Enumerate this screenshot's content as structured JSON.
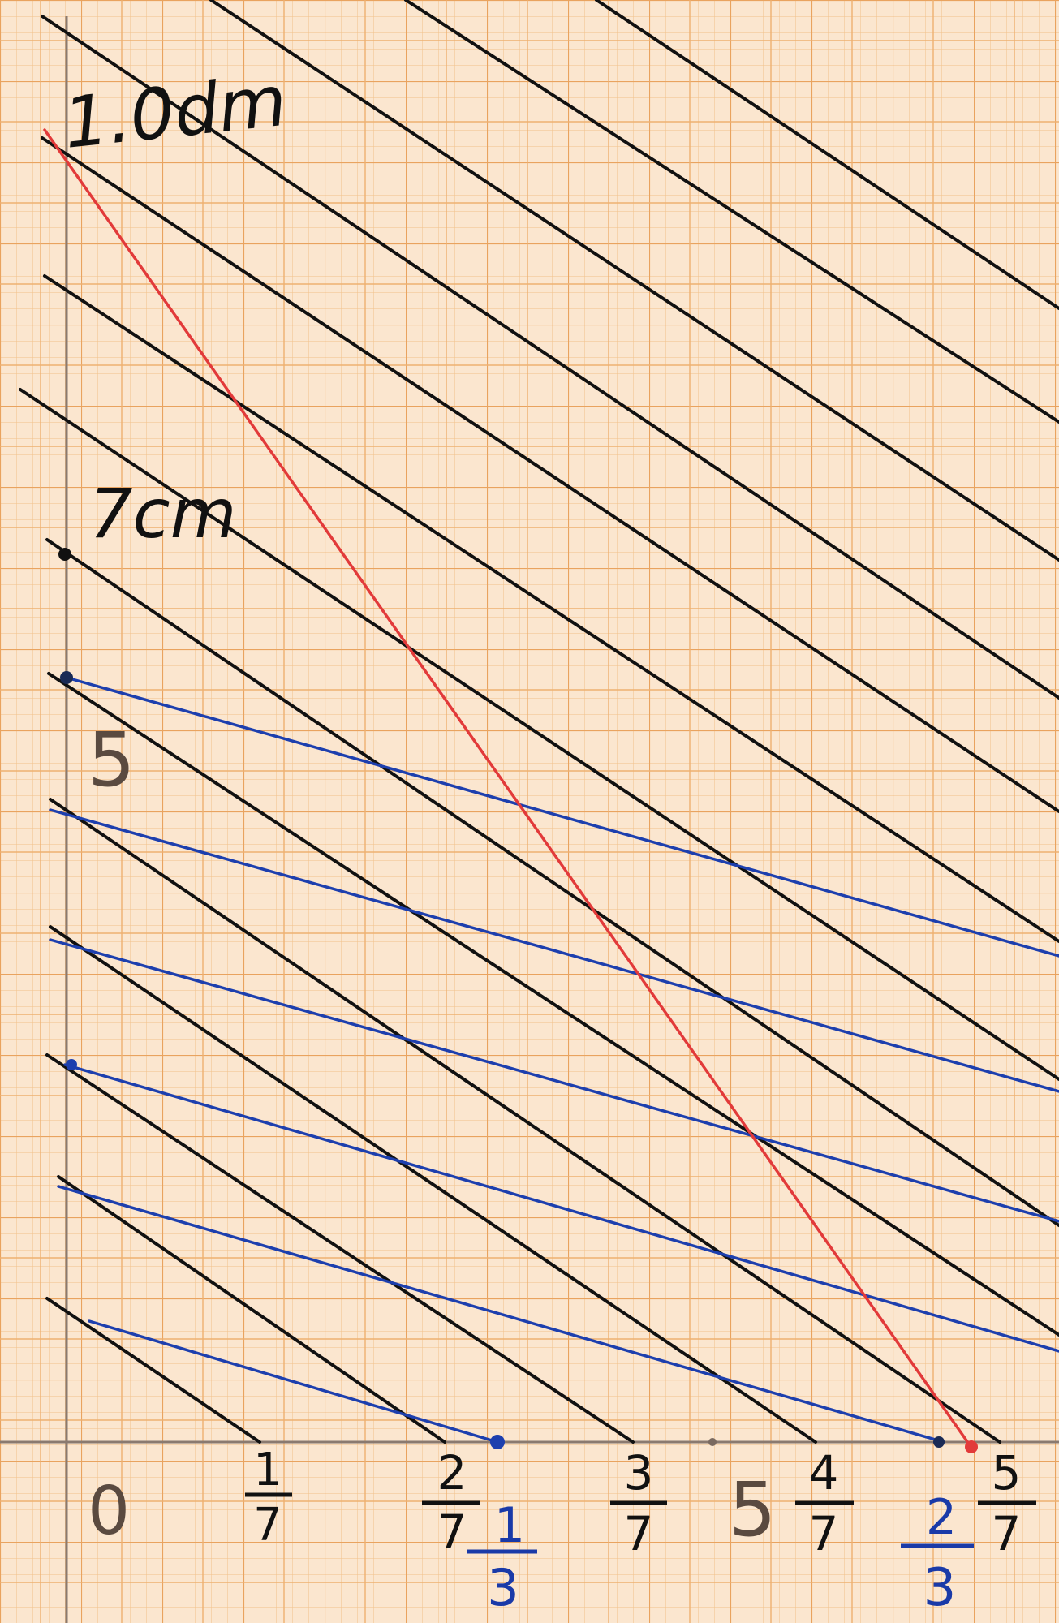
{
  "figure": {
    "description_free": true,
    "grid_paper": {
      "minor_color": "#f2c08a",
      "major_color": "#e9a35f",
      "background": "#fbe6cf"
    },
    "colors": {
      "black_lines": "#111111",
      "blue_lines": "#1d3fae",
      "red_line": "#e23a3a",
      "axis": "#8a7a70"
    },
    "labels": {
      "y_top": "1.0dm",
      "y_seven": "7cm",
      "y_five": "5",
      "x_zero": "0",
      "x_five": "5",
      "sevenths": [
        {
          "num": "1",
          "den": "7"
        },
        {
          "num": "2",
          "den": "7"
        },
        {
          "num": "3",
          "den": "7"
        },
        {
          "num": "4",
          "den": "7"
        },
        {
          "num": "5",
          "den": "7"
        }
      ],
      "thirds": [
        {
          "num": "1",
          "den": "3"
        },
        {
          "num": "2",
          "den": "3"
        }
      ]
    },
    "units": {
      "y_axis_cm_top": 10,
      "x_axis_cm_end": 6.3
    }
  }
}
